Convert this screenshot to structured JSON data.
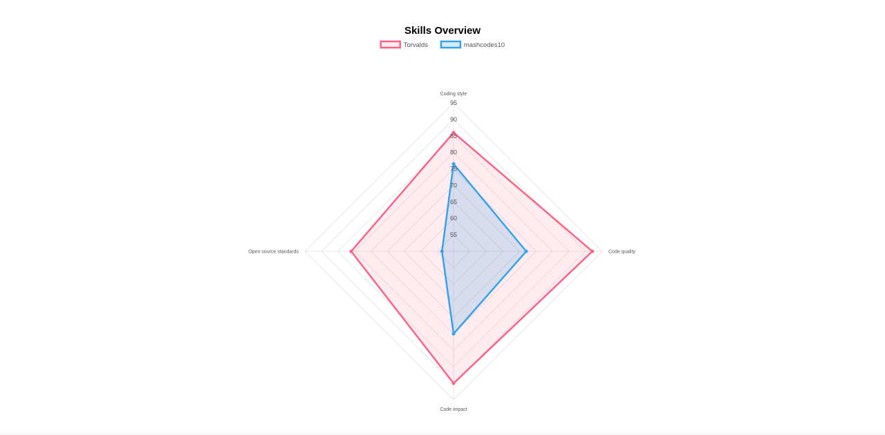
{
  "chart_data": {
    "type": "radar",
    "title": "Skills Overview",
    "axes": [
      "Coding style",
      "Code quality",
      "Code impact",
      "Open source standards"
    ],
    "ticks": [
      55,
      60,
      65,
      70,
      75,
      80,
      85,
      90,
      95
    ],
    "range": [
      50,
      95
    ],
    "grid": true,
    "legend_position": "top",
    "series": [
      {
        "name": "Torvalds",
        "values": [
          86,
          92,
          90,
          81
        ],
        "color": "#ff6384",
        "fill": "rgba(255,99,132,0.12)"
      },
      {
        "name": "mashcodes10",
        "values": [
          76.5,
          72,
          75,
          53.5
        ],
        "color": "#36a2eb",
        "fill": "rgba(54,162,235,0.2)"
      }
    ]
  }
}
